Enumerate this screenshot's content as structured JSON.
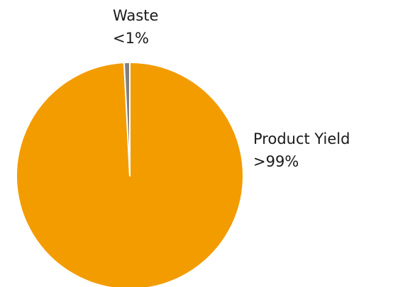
{
  "chart_data": {
    "type": "pie",
    "title": "",
    "slices": [
      {
        "name": "Product Yield",
        "value": 99.2,
        "label": ">99%",
        "color": "#f39c00"
      },
      {
        "name": "Waste",
        "value": 0.8,
        "label": "<1%",
        "color": "#7f7f7f"
      }
    ],
    "legend": "none",
    "start_angle_deg": 0,
    "direction": "clockwise"
  }
}
